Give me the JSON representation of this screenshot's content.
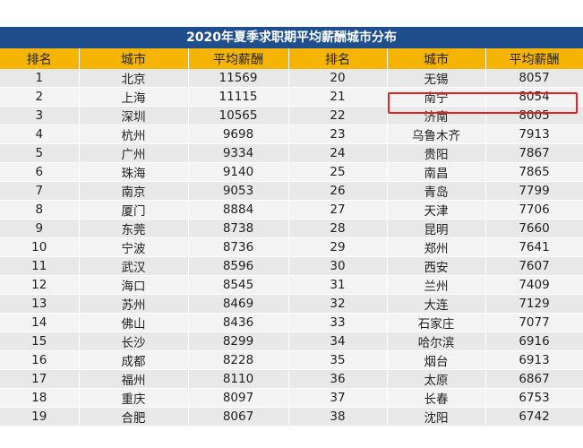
{
  "title": "2020年夏季求职期平均薪酬城市分布",
  "headers": [
    "排名",
    "城市",
    "平均薪酬",
    "排名",
    "城市",
    "平均薪酬"
  ],
  "rows": [
    [
      "1",
      "北京",
      "11569",
      "20",
      "无锡",
      "8057"
    ],
    [
      "2",
      "上海",
      "11115",
      "21",
      "南宁",
      "8054"
    ],
    [
      "3",
      "深圳",
      "10565",
      "22",
      "济南",
      "8005"
    ],
    [
      "4",
      "杭州",
      "9698",
      "23",
      "乌鲁木齐",
      "7913"
    ],
    [
      "5",
      "广州",
      "9334",
      "24",
      "贵阳",
      "7867"
    ],
    [
      "6",
      "珠海",
      "9140",
      "25",
      "南昌",
      "7865"
    ],
    [
      "7",
      "南京",
      "9053",
      "26",
      "青岛",
      "7799"
    ],
    [
      "8",
      "厦门",
      "8884",
      "27",
      "天津",
      "7706"
    ],
    [
      "9",
      "东莞",
      "8738",
      "28",
      "昆明",
      "7660"
    ],
    [
      "10",
      "宁波",
      "8736",
      "29",
      "郑州",
      "7641"
    ],
    [
      "11",
      "武汉",
      "8596",
      "30",
      "西安",
      "7607"
    ],
    [
      "12",
      "海口",
      "8545",
      "31",
      "兰州",
      "7409"
    ],
    [
      "13",
      "苏州",
      "8469",
      "32",
      "大连",
      "7129"
    ],
    [
      "14",
      "佛山",
      "8436",
      "33",
      "石家庄",
      "7077"
    ],
    [
      "15",
      "长沙",
      "8299",
      "34",
      "哈尔滨",
      "6916"
    ],
    [
      "16",
      "成都",
      "8228",
      "35",
      "烟台",
      "6913"
    ],
    [
      "17",
      "福州",
      "8110",
      "36",
      "太原",
      "6867"
    ],
    [
      "18",
      "重庆",
      "8097",
      "37",
      "长春",
      "6753"
    ],
    [
      "19",
      "合肥",
      "8067",
      "38",
      "沈阳",
      "6742"
    ]
  ],
  "colors": {
    "title_bg": "#1f4e8c",
    "header_bg": "#f4b400",
    "highlight_border": "#e02424"
  }
}
